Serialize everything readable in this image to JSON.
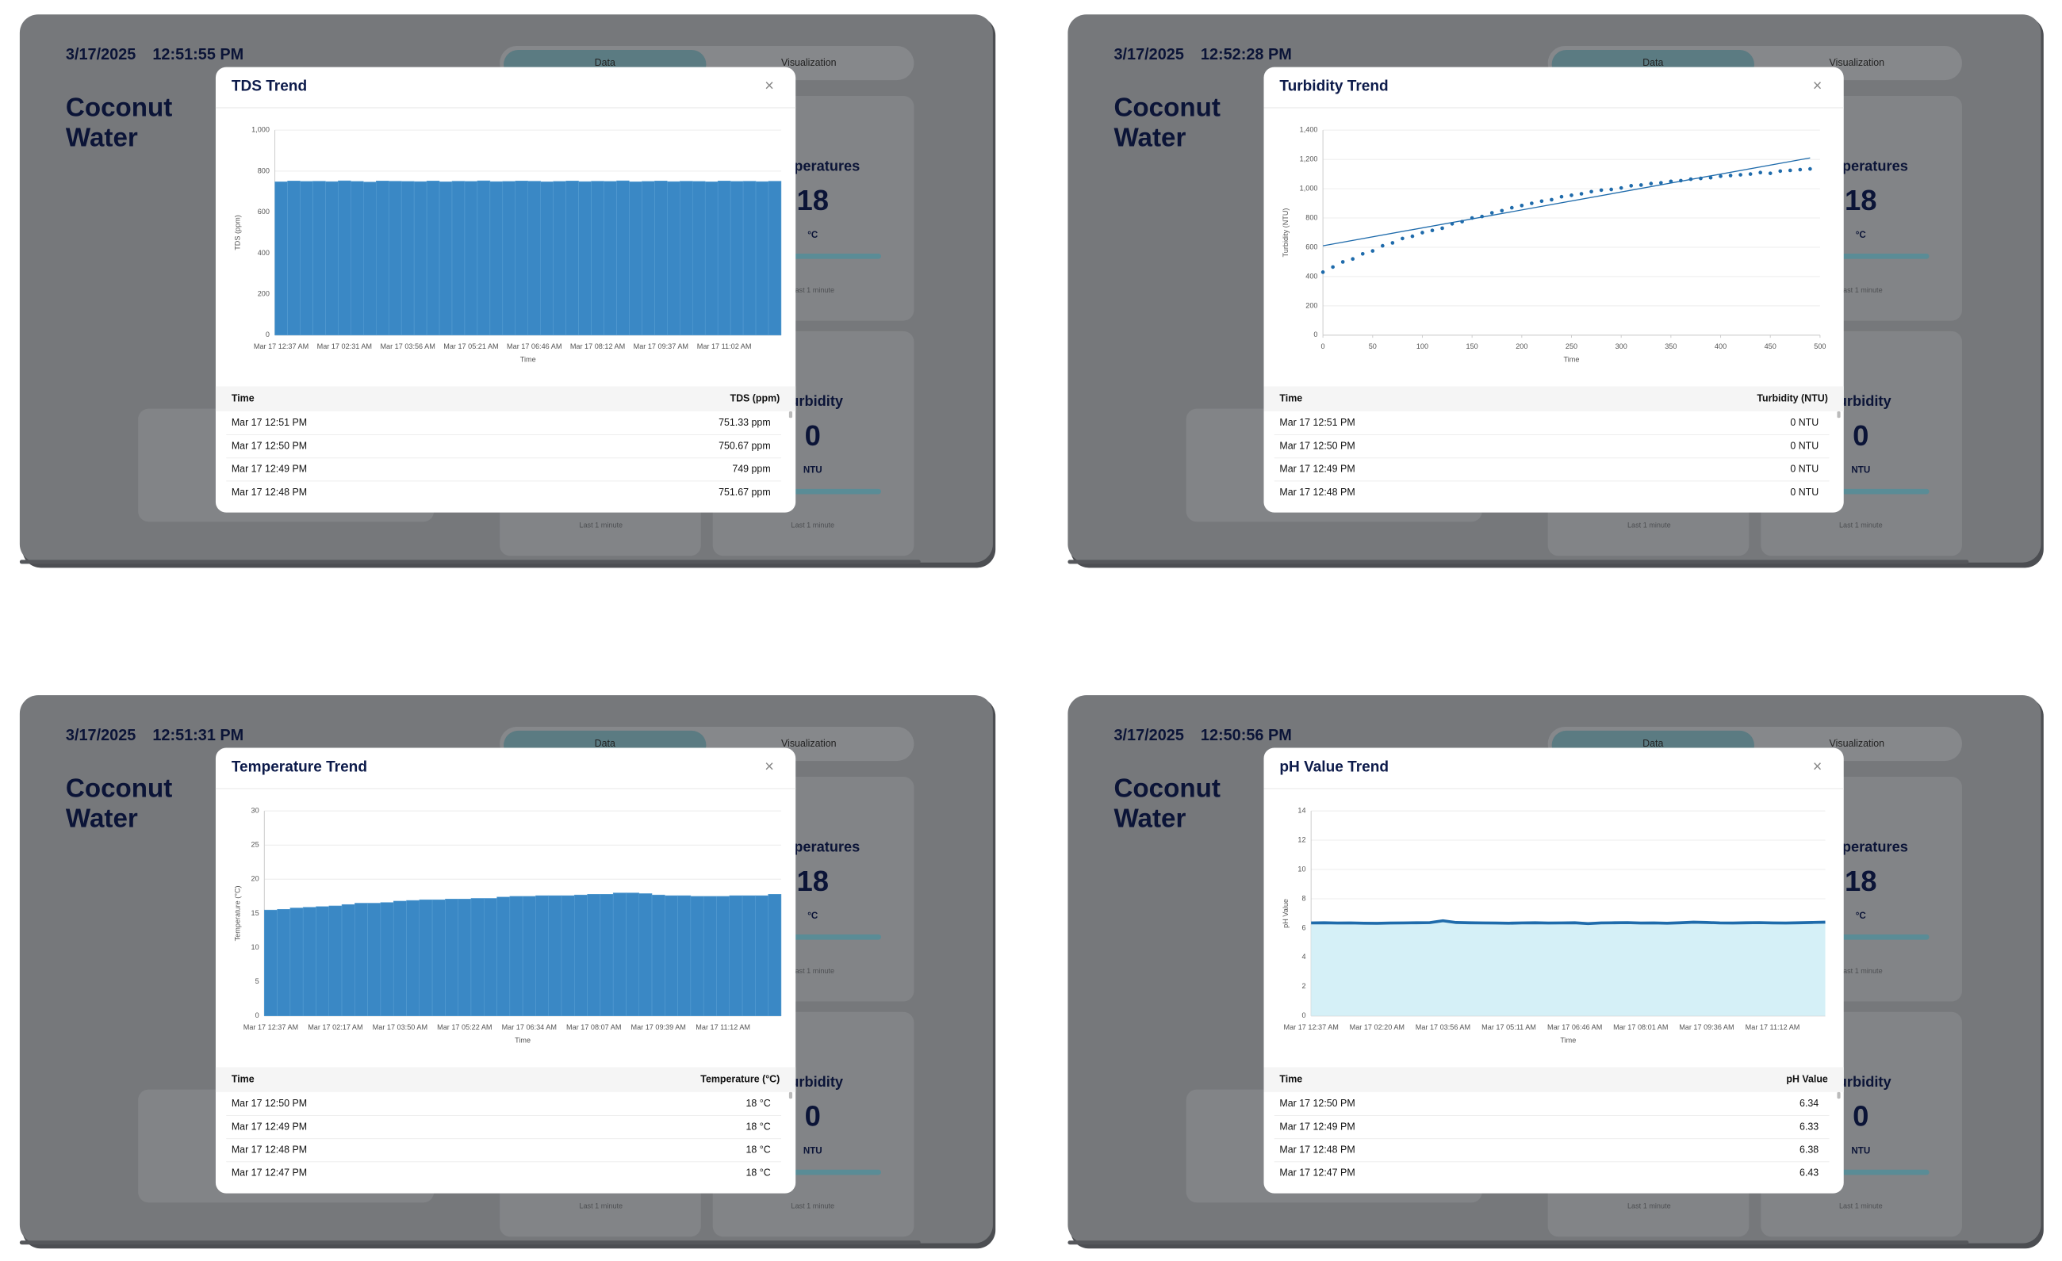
{
  "panels": [
    {
      "date": "3/17/2025",
      "time": "12:51:55 PM",
      "product": [
        "Coconut",
        "Water"
      ],
      "tabs": [
        "Data",
        "Visualization"
      ],
      "cards": [
        {
          "title": "Temperatures",
          "value": "18",
          "unit": "°C",
          "footer": "Last 1 minute"
        },
        {
          "title": "Turbidity",
          "value": "0",
          "unit": "NTU",
          "footer": "Last 1 minute"
        }
      ],
      "side_card": {
        "footer": "Last 1 minute"
      },
      "modal": {
        "title": "TDS Trend",
        "close": "×",
        "chart": {
          "type": "bar",
          "color": "#3a88c5",
          "ylabel": "TDS (ppm)",
          "xlabel": "Time",
          "categories": [
            "Mar 17 12:37 AM",
            null,
            null,
            null,
            null,
            "Mar 17 02:31 AM",
            null,
            null,
            null,
            null,
            "Mar 17 03:56 AM",
            null,
            null,
            null,
            null,
            "Mar 17 05:21 AM",
            null,
            null,
            null,
            null,
            "Mar 17 06:46 AM",
            null,
            null,
            null,
            null,
            "Mar 17 08:12 AM",
            null,
            null,
            null,
            null,
            "Mar 17 09:37 AM",
            null,
            null,
            null,
            null,
            "Mar 17 11:02 AM",
            null,
            null,
            null,
            null
          ],
          "values": [
            748,
            752,
            750,
            751,
            749,
            753,
            750,
            747,
            752,
            751,
            750,
            749,
            752,
            748,
            751,
            750,
            753,
            749,
            750,
            752,
            751,
            748,
            750,
            752,
            749,
            751,
            750,
            753,
            748,
            750,
            752,
            749,
            751,
            750,
            748,
            752,
            750,
            751,
            749,
            751
          ],
          "ylim": [
            0,
            1000
          ],
          "yticks": [
            0,
            200,
            400,
            600,
            800,
            {
              "value": 1000,
              "label": "1,000"
            }
          ],
          "grid": true
        },
        "table": {
          "columns": [
            "Time",
            "TDS (ppm)"
          ],
          "rows": [
            [
              "Mar 17 12:51 PM",
              "751.33 ppm"
            ],
            [
              "Mar 17 12:50 PM",
              "750.67 ppm"
            ],
            [
              "Mar 17 12:49 PM",
              "749 ppm"
            ],
            [
              "Mar 17 12:48 PM",
              "751.67 ppm"
            ]
          ]
        }
      }
    },
    {
      "date": "3/17/2025",
      "time": "12:52:28 PM",
      "product": [
        "Coconut",
        "Water"
      ],
      "tabs": [
        "Data",
        "Visualization"
      ],
      "cards": [
        {
          "title": "Temperatures",
          "value": "18",
          "unit": "°C",
          "footer": "Last 1 minute"
        },
        {
          "title": "Turbidity",
          "value": "0",
          "unit": "NTU",
          "footer": "Last 1 minute"
        }
      ],
      "side_card": {
        "footer": "Last 1 minute"
      },
      "modal": {
        "title": "Turbidity Trend",
        "close": "×",
        "chart": {
          "type": "scatter",
          "color": "#1f6bab",
          "ylabel": "Turbidity (NTU)",
          "xlabel": "Time",
          "x": [
            0,
            10,
            20,
            30,
            40,
            50,
            60,
            70,
            80,
            90,
            100,
            110,
            120,
            130,
            140,
            150,
            160,
            170,
            180,
            190,
            200,
            210,
            220,
            230,
            240,
            250,
            260,
            270,
            280,
            290,
            300,
            310,
            320,
            330,
            340,
            350,
            360,
            370,
            380,
            390,
            400,
            410,
            420,
            430,
            440,
            450,
            460,
            470,
            480,
            490
          ],
          "values": [
            430,
            465,
            500,
            520,
            555,
            575,
            610,
            630,
            660,
            675,
            700,
            715,
            730,
            760,
            775,
            800,
            810,
            835,
            850,
            870,
            885,
            900,
            915,
            925,
            945,
            955,
            965,
            980,
            990,
            995,
            1005,
            1020,
            1025,
            1035,
            1040,
            1050,
            1055,
            1065,
            1070,
            1075,
            1085,
            1090,
            1095,
            1100,
            1110,
            1105,
            1120,
            1125,
            1130,
            1135
          ],
          "trend": {
            "x": [
              0,
              490
            ],
            "values": [
              610,
              1210
            ]
          },
          "xlim": [
            0,
            500
          ],
          "xticks": [
            0,
            50,
            100,
            150,
            200,
            250,
            300,
            350,
            400,
            450,
            500
          ],
          "ylim": [
            0,
            1400
          ],
          "yticks": [
            0,
            200,
            400,
            600,
            800,
            {
              "value": 1000,
              "label": "1,000"
            },
            {
              "value": 1200,
              "label": "1,200"
            },
            {
              "value": 1400,
              "label": "1,400"
            }
          ],
          "grid": true
        },
        "table": {
          "columns": [
            "Time",
            "Turbidity (NTU)"
          ],
          "rows": [
            [
              "Mar 17 12:51 PM",
              "0 NTU"
            ],
            [
              "Mar 17 12:50 PM",
              "0 NTU"
            ],
            [
              "Mar 17 12:49 PM",
              "0 NTU"
            ],
            [
              "Mar 17 12:48 PM",
              "0 NTU"
            ]
          ]
        }
      }
    },
    {
      "date": "3/17/2025",
      "time": "12:51:31 PM",
      "product": [
        "Coconut",
        "Water"
      ],
      "tabs": [
        "Data",
        "Visualization"
      ],
      "cards": [
        {
          "title": "Temperatures",
          "value": "18",
          "unit": "°C",
          "footer": "Last 1 minute"
        },
        {
          "title": "Turbidity",
          "value": "0",
          "unit": "NTU",
          "footer": "Last 1 minute"
        }
      ],
      "side_card": {
        "footer": "Last 1 minute"
      },
      "modal": {
        "title": "Temperature Trend",
        "close": "×",
        "chart": {
          "type": "bar",
          "color": "#3a88c5",
          "ylabel": "Temperature (°C)",
          "xlabel": "Time",
          "categories": [
            "Mar 17 12:37 AM",
            null,
            null,
            null,
            null,
            "Mar 17 02:17 AM",
            null,
            null,
            null,
            null,
            "Mar 17 03:50 AM",
            null,
            null,
            null,
            null,
            "Mar 17 05:22 AM",
            null,
            null,
            null,
            null,
            "Mar 17 06:34 AM",
            null,
            null,
            null,
            null,
            "Mar 17 08:07 AM",
            null,
            null,
            null,
            null,
            "Mar 17 09:39 AM",
            null,
            null,
            null,
            null,
            "Mar 17 11:12 AM",
            null,
            null,
            null,
            null
          ],
          "values": [
            15.5,
            15.6,
            15.8,
            15.9,
            16.0,
            16.1,
            16.3,
            16.5,
            16.5,
            16.6,
            16.8,
            16.9,
            17.0,
            17.0,
            17.1,
            17.1,
            17.2,
            17.2,
            17.4,
            17.5,
            17.5,
            17.6,
            17.6,
            17.6,
            17.7,
            17.8,
            17.8,
            18.0,
            18.0,
            17.9,
            17.7,
            17.6,
            17.6,
            17.5,
            17.5,
            17.5,
            17.6,
            17.6,
            17.6,
            17.8
          ],
          "ylim": [
            0,
            30
          ],
          "yticks": [
            0,
            5,
            10,
            15,
            20,
            25,
            30
          ],
          "grid": true
        },
        "table": {
          "columns": [
            "Time",
            "Temperature (°C)"
          ],
          "rows": [
            [
              "Mar 17 12:50 PM",
              "18 °C"
            ],
            [
              "Mar 17 12:49 PM",
              "18 °C"
            ],
            [
              "Mar 17 12:48 PM",
              "18 °C"
            ],
            [
              "Mar 17 12:47 PM",
              "18 °C"
            ]
          ]
        }
      }
    },
    {
      "date": "3/17/2025",
      "time": "12:50:56 PM",
      "product": [
        "Coconut",
        "Water"
      ],
      "tabs": [
        "Data",
        "Visualization"
      ],
      "cards": [
        {
          "title": "Temperatures",
          "value": "18",
          "unit": "°C",
          "footer": "Last 1 minute"
        },
        {
          "title": "Turbidity",
          "value": "0",
          "unit": "NTU",
          "footer": "Last 1 minute"
        }
      ],
      "side_card": {
        "footer": "Last 1 minute"
      },
      "modal": {
        "title": "pH Value Trend",
        "close": "×",
        "chart": {
          "type": "area",
          "color": "#1f6bab",
          "fill": "#d5f0f7",
          "ylabel": "pH Value",
          "xlabel": "Time",
          "categories": [
            "Mar 17 12:37 AM",
            null,
            null,
            null,
            null,
            "Mar 17 02:20 AM",
            null,
            null,
            null,
            null,
            "Mar 17 03:56 AM",
            null,
            null,
            null,
            null,
            "Mar 17 05:11 AM",
            null,
            null,
            null,
            null,
            "Mar 17 06:46 AM",
            null,
            null,
            null,
            null,
            "Mar 17 08:01 AM",
            null,
            null,
            null,
            null,
            "Mar 17 09:36 AM",
            null,
            null,
            null,
            null,
            "Mar 17 11:12 AM",
            null,
            null,
            null,
            null
          ],
          "values": [
            6.35,
            6.36,
            6.34,
            6.35,
            6.33,
            6.32,
            6.34,
            6.35,
            6.36,
            6.37,
            6.5,
            6.38,
            6.36,
            6.35,
            6.34,
            6.33,
            6.35,
            6.36,
            6.34,
            6.35,
            6.36,
            6.3,
            6.35,
            6.36,
            6.37,
            6.34,
            6.35,
            6.33,
            6.36,
            6.4,
            6.38,
            6.35,
            6.34,
            6.36,
            6.37,
            6.35,
            6.34,
            6.36,
            6.38,
            6.4
          ],
          "ylim": [
            0,
            14
          ],
          "yticks": [
            0,
            2,
            4,
            6,
            8,
            10,
            12,
            14
          ],
          "grid": true
        },
        "table": {
          "columns": [
            "Time",
            "pH Value"
          ],
          "rows": [
            [
              "Mar 17 12:50 PM",
              "6.34"
            ],
            [
              "Mar 17 12:49 PM",
              "6.33"
            ],
            [
              "Mar 17 12:48 PM",
              "6.38"
            ],
            [
              "Mar 17 12:47 PM",
              "6.43"
            ]
          ]
        }
      }
    }
  ]
}
